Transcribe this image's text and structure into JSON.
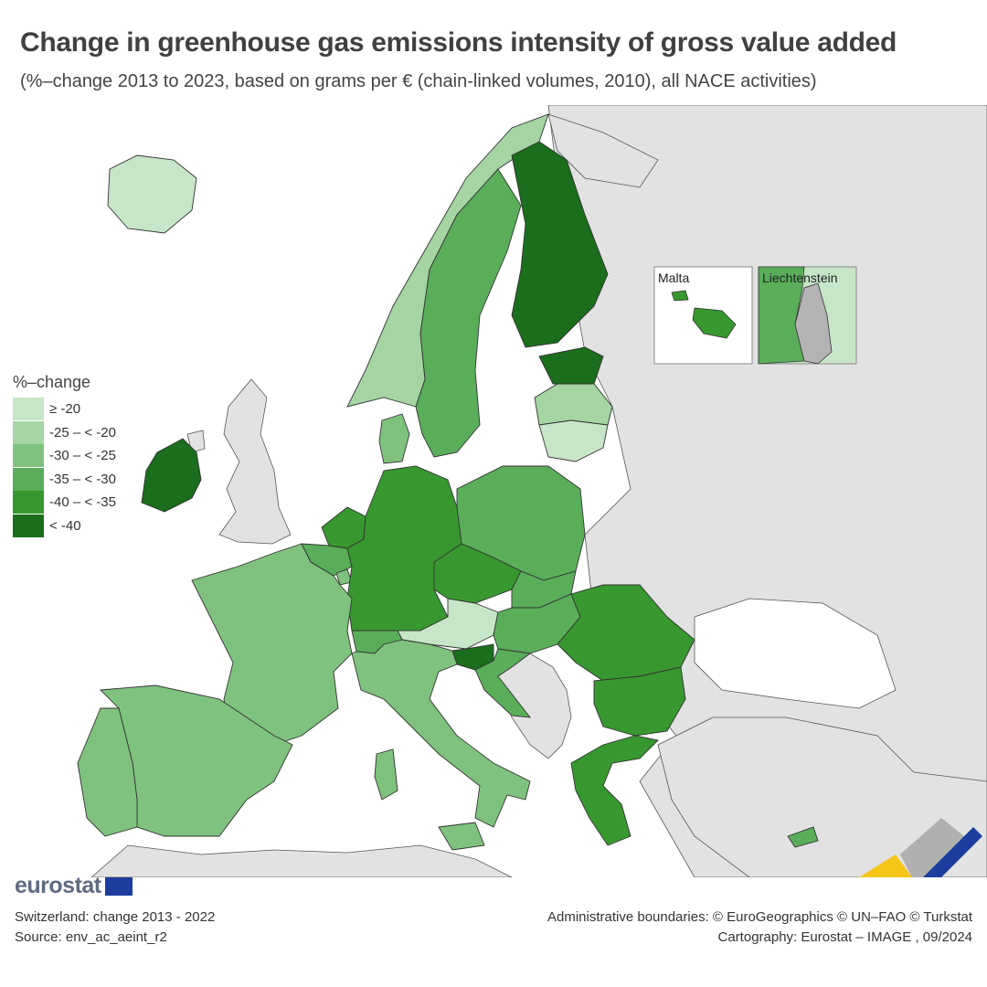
{
  "title": "Change in greenhouse gas emissions intensity of gross value added",
  "subtitle": "(%–change 2013 to 2023, based on grams per € (chain-linked volumes, 2010), all NACE activities)",
  "legend": {
    "title": "%–change",
    "items": [
      {
        "label": "≥ -20",
        "color": "#c7e6c8"
      },
      {
        "label": "-25 – < -20",
        "color": "#a4d5a3"
      },
      {
        "label": "-30 – < -25",
        "color": "#7fc27d"
      },
      {
        "label": "-35 – < -30",
        "color": "#5aae5a"
      },
      {
        "label": "-40 – < -35",
        "color": "#37982f"
      },
      {
        "label": "< -40",
        "color": "#1b6e1b"
      }
    ]
  },
  "insets": {
    "malta": "Malta",
    "liechtenstein": "Liechtenstein"
  },
  "logo": "eurostat",
  "footer": {
    "note": "Switzerland: change 2013 - 2022",
    "source": "Source: env_ac_aeint_r2",
    "admin": "Administrative boundaries: © EuroGeographics © UN–FAO © Turkstat",
    "cartography": "Cartography: Eurostat – IMAGE , 09/2024"
  },
  "colors": {
    "sea": "#ffffff",
    "non_data": "#e2e2e2",
    "no_data_country": "#b3b3b3",
    "border": "#333333"
  },
  "countries": [
    {
      "id": "iceland",
      "class": 0
    },
    {
      "id": "norway",
      "class": 1
    },
    {
      "id": "sweden",
      "class": 3
    },
    {
      "id": "finland",
      "class": 5
    },
    {
      "id": "estonia",
      "class": 5
    },
    {
      "id": "latvia",
      "class": 1
    },
    {
      "id": "lithuania",
      "class": 0
    },
    {
      "id": "ireland",
      "class": 5
    },
    {
      "id": "denmark",
      "class": 2
    },
    {
      "id": "netherlands",
      "class": 4
    },
    {
      "id": "belgium",
      "class": 3
    },
    {
      "id": "luxembourg",
      "class": 2
    },
    {
      "id": "germany",
      "class": 4
    },
    {
      "id": "poland",
      "class": 3
    },
    {
      "id": "czechia",
      "class": 4
    },
    {
      "id": "slovakia",
      "class": 3
    },
    {
      "id": "austria",
      "class": 0
    },
    {
      "id": "hungary",
      "class": 3
    },
    {
      "id": "slovenia",
      "class": 5
    },
    {
      "id": "croatia",
      "class": 3
    },
    {
      "id": "romania",
      "class": 4
    },
    {
      "id": "bulgaria",
      "class": 4
    },
    {
      "id": "greece",
      "class": 4
    },
    {
      "id": "france",
      "class": 2
    },
    {
      "id": "spain",
      "class": 2
    },
    {
      "id": "portugal",
      "class": 2
    },
    {
      "id": "italy",
      "class": 2
    },
    {
      "id": "switzerland",
      "class": 3
    },
    {
      "id": "cyprus",
      "class": 3
    },
    {
      "id": "malta",
      "class": 4
    },
    {
      "id": "liechtenstein",
      "class": 3
    }
  ]
}
